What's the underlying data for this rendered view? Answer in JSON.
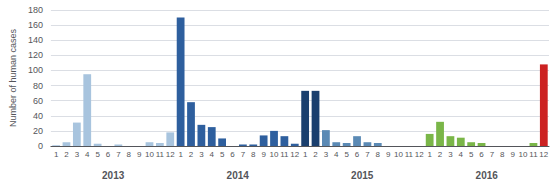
{
  "chart_data": {
    "type": "bar",
    "ylabel": "Number of human cases",
    "categories": [
      "1",
      "2",
      "3",
      "4",
      "5",
      "6",
      "7",
      "8",
      "9",
      "10",
      "11",
      "12",
      "1",
      "2",
      "3",
      "4",
      "5",
      "6",
      "7",
      "8",
      "9",
      "10",
      "11",
      "12",
      "1",
      "2",
      "3",
      "4",
      "5",
      "6",
      "7",
      "8",
      "9",
      "10",
      "11",
      "12",
      "1",
      "2",
      "3",
      "4",
      "5",
      "6",
      "7",
      "8",
      "9",
      "10",
      "11",
      "12"
    ],
    "values": [
      1,
      5,
      31,
      95,
      3,
      0,
      2,
      0,
      0,
      5,
      4,
      18,
      170,
      58,
      28,
      25,
      10,
      0,
      2,
      2,
      14,
      20,
      13,
      3,
      73,
      73,
      21,
      5,
      4,
      13,
      5,
      4,
      0,
      0,
      0,
      0,
      16,
      32,
      13,
      11,
      5,
      4,
      0,
      0,
      0,
      0,
      4,
      108
    ],
    "colors": [
      "#a8c4de",
      "#a8c4de",
      "#a8c4de",
      "#a8c4de",
      "#a8c4de",
      "#a8c4de",
      "#a8c4de",
      "#a8c4de",
      "#a8c4de",
      "#a8c4de",
      "#a8c4de",
      "#a8c4de",
      "#2e5f9e",
      "#2e5f9e",
      "#2e5f9e",
      "#2e5f9e",
      "#2e5f9e",
      "#2e5f9e",
      "#2e5f9e",
      "#2e5f9e",
      "#2e5f9e",
      "#2e5f9e",
      "#2e5f9e",
      "#2e5f9e",
      "#1a3f6e",
      "#1a3f6e",
      "#5b8ab5",
      "#5b8ab5",
      "#5b8ab5",
      "#5b8ab5",
      "#5b8ab5",
      "#5b8ab5",
      "#5b8ab5",
      "#5b8ab5",
      "#5b8ab5",
      "#5b8ab5",
      "#7ab648",
      "#7ab648",
      "#7ab648",
      "#7ab648",
      "#7ab648",
      "#7ab648",
      "#7ab648",
      "#7ab648",
      "#7ab648",
      "#7ab648",
      "#7ab648",
      "#cc2222"
    ],
    "annotations": [
      "2013",
      "2014",
      "2015",
      "2016"
    ],
    "ylim": [
      0,
      180
    ],
    "yticks": [
      0,
      20,
      40,
      60,
      80,
      100,
      120,
      140,
      160,
      180
    ],
    "grid": true
  }
}
